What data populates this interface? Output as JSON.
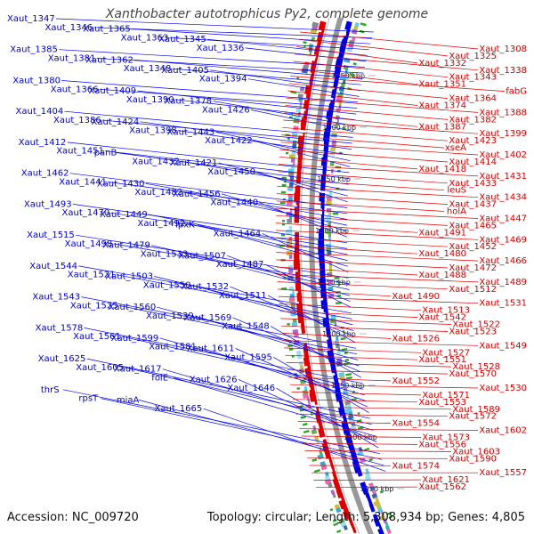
{
  "title": "Xanthobacter autotrophicus Py2, complete genome",
  "footer": {
    "accession": "Accession: NC_009720",
    "summary": "Topology: circular; Length: 5,308,934 bp; Genes: 4,805"
  },
  "colors": {
    "left_genes": "#0000ee",
    "right_genes": "#dd0000",
    "backbone": "#888888",
    "rna": "#22aa22"
  },
  "kbp_markers": [
    "1550 kbp",
    "1600 kbp",
    "1650 kbp",
    "1700 kbp",
    "1750 kbp",
    "1800 kbp",
    "1850 kbp",
    "1900 kbp",
    "1950 kbp"
  ],
  "left_labels": [
    "Xaut_1347",
    "Xaut_1346",
    "Xaut_1365",
    "Xaut_1363",
    "Xaut_1345",
    "Xaut_1336",
    "Xaut_1385",
    "Xaut_1381",
    "Xaut_1362",
    "Xaut_1348",
    "Xaut_1405",
    "Xaut_1394",
    "Xaut_1380",
    "Xaut_1366",
    "Xaut_1409",
    "Xaut_1390",
    "Xaut_1378",
    "Xaut_1426",
    "Xaut_1404",
    "Xaut_1386",
    "Xaut_1424",
    "Xaut_1398",
    "Xaut_1443",
    "Xaut_1422",
    "Xaut_1412",
    "Xaut_1451",
    "panB",
    "Xaut_1432",
    "Xaut_1421",
    "Xaut_1450",
    "Xaut_1462",
    "Xaut_1441",
    "Xaut_1430",
    "Xaut_1482",
    "Xaut_1456",
    "Xaut_1440",
    "Xaut_1493",
    "Xaut_1470",
    "Xaut_1449",
    "Xaut_1492",
    "lpxK",
    "Xaut_1464",
    "Xaut_1515",
    "Xaut_1498",
    "Xaut_1479",
    "Xaut_1533",
    "Xaut_1507",
    "Xaut_1487",
    "Xaut_1544",
    "Xaut_1521",
    "Xaut_1503",
    "Xaut_1550",
    "Xaut_1532",
    "Xaut_1511",
    "Xaut_1543",
    "Xaut_1525",
    "Xaut_1560",
    "Xaut_1539",
    "Xaut_1569",
    "Xaut_1548",
    "Xaut_1578",
    "Xaut_1561",
    "Xaut_1599",
    "Xaut_1581",
    "Xaut_1611",
    "Xaut_1595",
    "Xaut_1625",
    "Xaut_1605",
    "Xaut_1617",
    "folE",
    "Xaut_1626",
    "Xaut_1646",
    "thrS",
    "rpsT",
    "miaA",
    "Xaut_1665"
  ],
  "right_labels": [
    "Xaut_1308",
    "Xaut_1325",
    "Xaut_1332",
    "Xaut_1338",
    "Xaut_1343",
    "Xaut_1351",
    "fabG",
    "Xaut_1364",
    "Xaut_1374",
    "Xaut_1388",
    "Xaut_1382",
    "Xaut_1387",
    "Xaut_1399",
    "Xaut_1423",
    "xseA",
    "Xaut_1402",
    "Xaut_1414",
    "Xaut_1418",
    "Xaut_1431",
    "Xaut_1433",
    "leuS",
    "Xaut_1434",
    "Xaut_1437",
    "holA",
    "Xaut_1447",
    "Xaut_1465",
    "Xaut_1491",
    "Xaut_1469",
    "Xaut_1452",
    "Xaut_1480",
    "Xaut_1466",
    "Xaut_1472",
    "Xaut_1488",
    "Xaut_1489",
    "Xaut_1512",
    "Xaut_1490",
    "Xaut_1531",
    "Xaut_1513",
    "Xaut_1542",
    "Xaut_1522",
    "Xaut_1523",
    "Xaut_1526",
    "Xaut_1549",
    "Xaut_1527",
    "Xaut_1551",
    "Xaut_1528",
    "Xaut_1570",
    "Xaut_1552",
    "Xaut_1530",
    "Xaut_1571",
    "Xaut_1553",
    "Xaut_1589",
    "Xaut_1572",
    "Xaut_1554",
    "Xaut_1602",
    "Xaut_1573",
    "Xaut_1556",
    "Xaut_1603",
    "Xaut_1590",
    "Xaut_1574",
    "Xaut_1557",
    "Xaut_1621",
    "Xaut_1562"
  ]
}
